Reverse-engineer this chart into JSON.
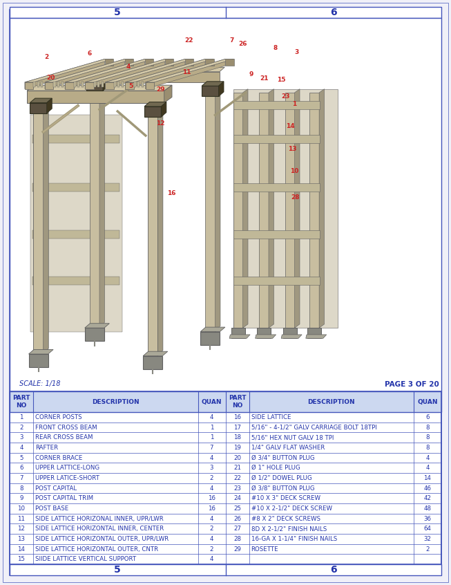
{
  "border_color": "#4455bb",
  "bg_color": "#f0f0f8",
  "white": "#ffffff",
  "title_color": "#2233aa",
  "label_color": "#cc2222",
  "scale_text": "SCALE: 1/18",
  "page_text": "PAGE 3 OF 20",
  "top_labels": [
    "5",
    "6"
  ],
  "bottom_labels": [
    "5",
    "6"
  ],
  "table_rows": [
    [
      "1",
      "CORNER POSTS",
      "4",
      "16",
      "SIDE LATTICE",
      "6"
    ],
    [
      "2",
      "FRONT CROSS BEAM",
      "1",
      "17",
      "5/16\" - 4-1/2\" GALV CARRIAGE BOLT 18TPI",
      "8"
    ],
    [
      "3",
      "REAR CROSS BEAM",
      "1",
      "18",
      "5/16\" HEX NUT GALV 18 TPI",
      "8"
    ],
    [
      "4",
      "RAFTER",
      "7",
      "19",
      "1/4\" GALV FLAT WASHER",
      "8"
    ],
    [
      "5",
      "CORNER BRACE",
      "4",
      "20",
      "Ø 3/4\" BUTTON PLUG",
      "4"
    ],
    [
      "6",
      "UPPER LATTICE-LONG",
      "3",
      "21",
      "Ø 1\" HOLE PLUG",
      "4"
    ],
    [
      "7",
      "UPPER LATICE-SHORT",
      "2",
      "22",
      "Ø 1/2\" DOWEL PLUG",
      "14"
    ],
    [
      "8",
      "POST CAPITAL",
      "4",
      "23",
      "Ø 3/8\" BUTTON PLUG",
      "46"
    ],
    [
      "9",
      "POST CAPITAL TRIM",
      "16",
      "24",
      "#10 X 3\" DECK SCREW",
      "42"
    ],
    [
      "10",
      "POST BASE",
      "16",
      "25",
      "#10 X 2-1/2\" DECK SCREW",
      "48"
    ],
    [
      "11",
      "SIDE LATTICE HORIZONAL INNER, UPR/LWR",
      "4",
      "26",
      "#8 X 2\" DECK SCREWS",
      "36"
    ],
    [
      "12",
      "SIDE LATTICE HORIZONTAL INNER, CENTER",
      "2",
      "27",
      "8D X 2-1/2\" FINISH NAILS",
      "64"
    ],
    [
      "13",
      "SIDE LATTICE HORIZONTAL OUTER, UPR/LWR",
      "4",
      "28",
      "16-GA X 1-1/4\" FINISH NAILS",
      "32"
    ],
    [
      "14",
      "SIDE LATTICE HORIZONTAL OUTER, CNTR",
      "2",
      "29",
      "ROSETTE",
      "2"
    ],
    [
      "15",
      "SIIDE LATTICE VERTICAL SUPPORT",
      "4",
      "",
      "",
      ""
    ]
  ],
  "wood_light": "#d4c9a8",
  "wood_mid": "#b8ab88",
  "wood_dark": "#9a8e70",
  "wood_shadow": "#7a7060",
  "post_face": "#c8bea0",
  "post_side": "#a09880",
  "base_color": "#888880",
  "cap_color": "#5a5040",
  "line_color": "#606060",
  "lattice_fill": "#ddd8c8",
  "lattice_bar": "#c0b898"
}
